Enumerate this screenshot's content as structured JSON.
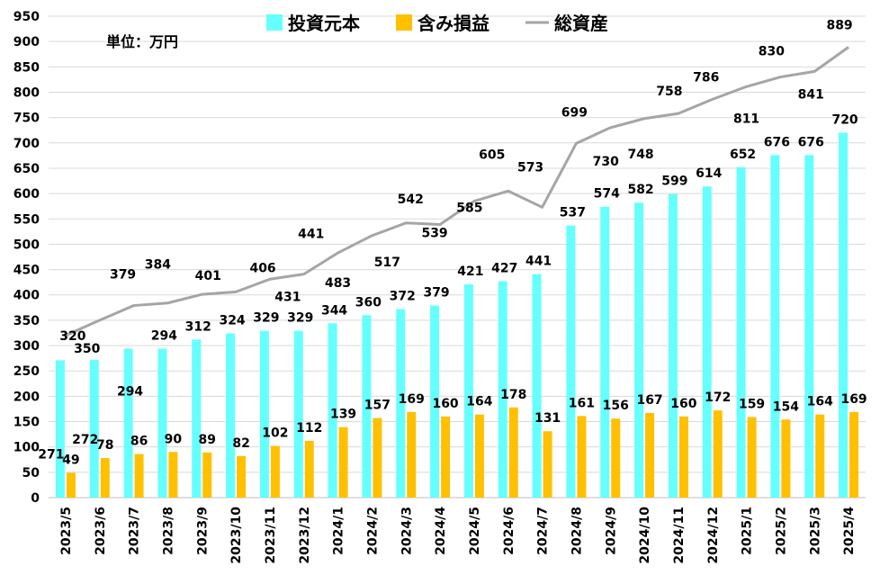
{
  "chart_data": {
    "type": "bar",
    "unit_label": "単位：万円",
    "categories": [
      "2023/5",
      "2023/6",
      "2023/7",
      "2023/8",
      "2023/9",
      "2023/10",
      "2023/11",
      "2023/12",
      "2024/1",
      "2024/2",
      "2024/3",
      "2024/4",
      "2024/5",
      "2024/6",
      "2024/7",
      "2024/8",
      "2024/9",
      "2024/10",
      "2024/11",
      "2024/12",
      "2025/1",
      "2025/2",
      "2025/3",
      "2025/4"
    ],
    "series": [
      {
        "name": "投資元本",
        "type": "bar",
        "color": "#66FFFF",
        "values": [
          271,
          272,
          294,
          294,
          312,
          324,
          329,
          329,
          344,
          360,
          372,
          379,
          421,
          427,
          441,
          537,
          574,
          582,
          599,
          614,
          652,
          676,
          676,
          720
        ]
      },
      {
        "name": "含み損益",
        "type": "bar",
        "color": "#FFC000",
        "values": [
          49,
          78,
          86,
          90,
          89,
          82,
          102,
          112,
          139,
          157,
          169,
          160,
          164,
          178,
          131,
          161,
          156,
          167,
          160,
          172,
          159,
          154,
          164,
          169
        ]
      },
      {
        "name": "総資産",
        "type": "line",
        "color": "#A5A5A5",
        "values": [
          320,
          350,
          379,
          384,
          401,
          406,
          431,
          441,
          483,
          517,
          542,
          539,
          585,
          605,
          573,
          699,
          730,
          748,
          758,
          786,
          811,
          830,
          841,
          889
        ]
      }
    ],
    "ylim": [
      0,
      950
    ],
    "yticks": [
      0,
      50,
      100,
      150,
      200,
      250,
      300,
      350,
      400,
      450,
      500,
      550,
      600,
      650,
      700,
      750,
      800,
      850,
      900,
      950
    ],
    "grid": true,
    "legend_position": "top"
  }
}
